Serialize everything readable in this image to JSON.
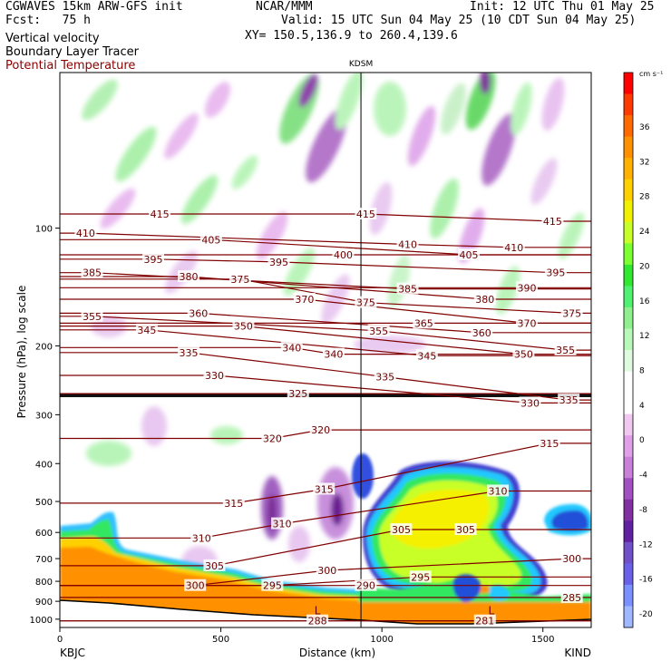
{
  "header": {
    "model": "CGWAVES 15km ARW-GFS init",
    "org": "NCAR/MMM",
    "init": "Init: 12 UTC Thu 01 May 25",
    "fcst": "Fcst:   75 h",
    "valid": "Valid: 15 UTC Sun 04 May 25 (10 CDT Sun 04 May 25)",
    "xy": "XY= 150.5,136.9 to 260.4,139.6",
    "fields": [
      "Vertical velocity",
      "Boundary Layer Tracer",
      "Potential Temperature"
    ]
  },
  "chart_data": {
    "type": "heatmap",
    "title": "",
    "xlabel": "Distance (km)",
    "ylabel": "Pressure (hPa), log scale",
    "xlim": [
      0,
      1650
    ],
    "ylim": [
      1050,
      40
    ],
    "y_scale": "log",
    "x_ticks": [
      0,
      500,
      1000,
      1500
    ],
    "y_ticks": [
      100,
      200,
      300,
      400,
      500,
      600,
      700,
      800,
      900,
      1000
    ],
    "endpoints": {
      "left": "KBJC",
      "right": "KIND"
    },
    "station_marker": {
      "label": "KDSM",
      "x": 935
    },
    "colorbar": {
      "units": "cm s⁻¹",
      "ticks": [
        36,
        32,
        28,
        24,
        20,
        16,
        12,
        8,
        4,
        0,
        -4,
        -8,
        -12,
        -16,
        -20
      ],
      "colors": [
        "#ff0000",
        "#ff3a00",
        "#ff6a00",
        "#ff9000",
        "#ffb000",
        "#ffd000",
        "#f0f000",
        "#c8ff28",
        "#7cff30",
        "#30e830",
        "#50f070",
        "#90f090",
        "#b8f8b8",
        "#e0fae0",
        "#ffffff",
        "#ffffff",
        "#f0c8f0",
        "#e0a0e8",
        "#c880d8",
        "#a050c0",
        "#8030a0",
        "#6020a0",
        "#7050c8",
        "#6a60e8",
        "#7a90ff",
        "#a0b8ff"
      ]
    },
    "theta_contour_labels": [
      {
        "v": 415,
        "x": 310,
        "p": 92
      },
      {
        "v": 415,
        "x": 950,
        "p": 92
      },
      {
        "v": 415,
        "x": 1530,
        "p": 96
      },
      {
        "v": 410,
        "x": 80,
        "p": 103
      },
      {
        "v": 410,
        "x": 1080,
        "p": 110
      },
      {
        "v": 410,
        "x": 1410,
        "p": 112
      },
      {
        "v": 405,
        "x": 470,
        "p": 107
      },
      {
        "v": 405,
        "x": 1270,
        "p": 117
      },
      {
        "v": 400,
        "x": 880,
        "p": 117
      },
      {
        "v": 395,
        "x": 290,
        "p": 120
      },
      {
        "v": 395,
        "x": 680,
        "p": 122
      },
      {
        "v": 395,
        "x": 1540,
        "p": 130
      },
      {
        "v": 390,
        "x": 1450,
        "p": 142
      },
      {
        "v": 385,
        "x": 100,
        "p": 130
      },
      {
        "v": 385,
        "x": 1080,
        "p": 143
      },
      {
        "v": 380,
        "x": 400,
        "p": 133
      },
      {
        "v": 380,
        "x": 1320,
        "p": 152
      },
      {
        "v": 375,
        "x": 560,
        "p": 135
      },
      {
        "v": 375,
        "x": 950,
        "p": 155
      },
      {
        "v": 375,
        "x": 1590,
        "p": 165
      },
      {
        "v": 370,
        "x": 760,
        "p": 152
      },
      {
        "v": 370,
        "x": 1450,
        "p": 175
      },
      {
        "v": 365,
        "x": 1130,
        "p": 175
      },
      {
        "v": 360,
        "x": 430,
        "p": 165
      },
      {
        "v": 360,
        "x": 1310,
        "p": 185
      },
      {
        "v": 355,
        "x": 100,
        "p": 168
      },
      {
        "v": 355,
        "x": 990,
        "p": 183
      },
      {
        "v": 355,
        "x": 1570,
        "p": 205
      },
      {
        "v": 350,
        "x": 570,
        "p": 178
      },
      {
        "v": 350,
        "x": 1440,
        "p": 210
      },
      {
        "v": 345,
        "x": 270,
        "p": 182
      },
      {
        "v": 345,
        "x": 1140,
        "p": 212
      },
      {
        "v": 340,
        "x": 720,
        "p": 202
      },
      {
        "v": 340,
        "x": 850,
        "p": 210
      },
      {
        "v": 335,
        "x": 400,
        "p": 208
      },
      {
        "v": 335,
        "x": 1010,
        "p": 240
      },
      {
        "v": 335,
        "x": 1580,
        "p": 275
      },
      {
        "v": 330,
        "x": 480,
        "p": 238
      },
      {
        "v": 330,
        "x": 1460,
        "p": 280
      },
      {
        "v": 325,
        "x": 740,
        "p": 265
      },
      {
        "v": 320,
        "x": 660,
        "p": 345
      },
      {
        "v": 320,
        "x": 810,
        "p": 328
      },
      {
        "v": 315,
        "x": 540,
        "p": 505
      },
      {
        "v": 315,
        "x": 820,
        "p": 465
      },
      {
        "v": 315,
        "x": 1520,
        "p": 355
      },
      {
        "v": 310,
        "x": 440,
        "p": 620
      },
      {
        "v": 310,
        "x": 690,
        "p": 570
      },
      {
        "v": 310,
        "x": 1360,
        "p": 470
      },
      {
        "v": 305,
        "x": 480,
        "p": 730
      },
      {
        "v": 305,
        "x": 1060,
        "p": 590
      },
      {
        "v": 305,
        "x": 1260,
        "p": 590
      },
      {
        "v": 300,
        "x": 830,
        "p": 750
      },
      {
        "v": 300,
        "x": 420,
        "p": 820
      },
      {
        "v": 300,
        "x": 1590,
        "p": 700
      },
      {
        "v": 295,
        "x": 660,
        "p": 820
      },
      {
        "v": 295,
        "x": 1120,
        "p": 780
      },
      {
        "v": 290,
        "x": 950,
        "p": 820
      },
      {
        "v": 285,
        "x": 1590,
        "p": 880
      },
      {
        "v": 288,
        "x": 800,
        "p": 1010
      },
      {
        "v": 281,
        "x": 1320,
        "p": 1010
      }
    ],
    "L_labels": [
      {
        "x": 800,
        "p": 950
      },
      {
        "x": 1340,
        "p": 950
      }
    ]
  }
}
